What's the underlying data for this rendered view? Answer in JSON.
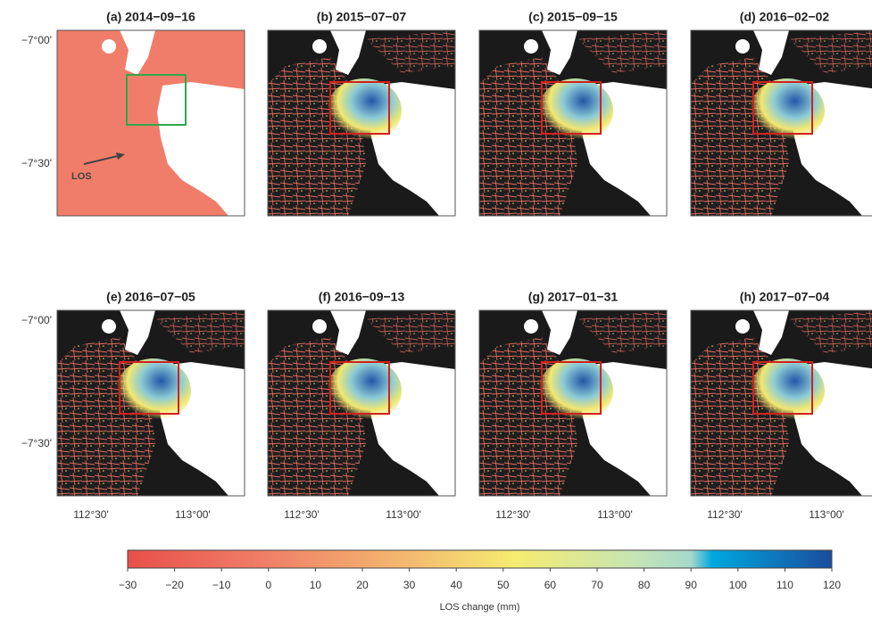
{
  "panels": [
    {
      "title": "(a) 2014−09−16"
    },
    {
      "title": "(b) 2015−07−07"
    },
    {
      "title": "(c) 2015−09−15"
    },
    {
      "title": "(d) 2016−02−02"
    },
    {
      "title": "(e) 2016−07−05"
    },
    {
      "title": "(f) 2016−09−13"
    },
    {
      "title": "(g) 2017−01−31"
    },
    {
      "title": "(h) 2017−07−04"
    }
  ],
  "lat_labels": [
    "−7°00'",
    "−7°30'"
  ],
  "lon_labels": [
    "112°30'",
    "113°00'"
  ],
  "los_label": "LOS",
  "colorbar": {
    "label": "LOS change (mm)",
    "lim": [
      -30,
      120
    ],
    "ticks": [
      {
        "value": -30,
        "label": "−30"
      },
      {
        "value": -20,
        "label": "−20"
      },
      {
        "value": -10,
        "label": "−10"
      },
      0,
      10,
      20,
      30,
      40,
      50,
      60,
      70,
      80,
      90,
      100,
      110,
      120
    ]
  }
}
